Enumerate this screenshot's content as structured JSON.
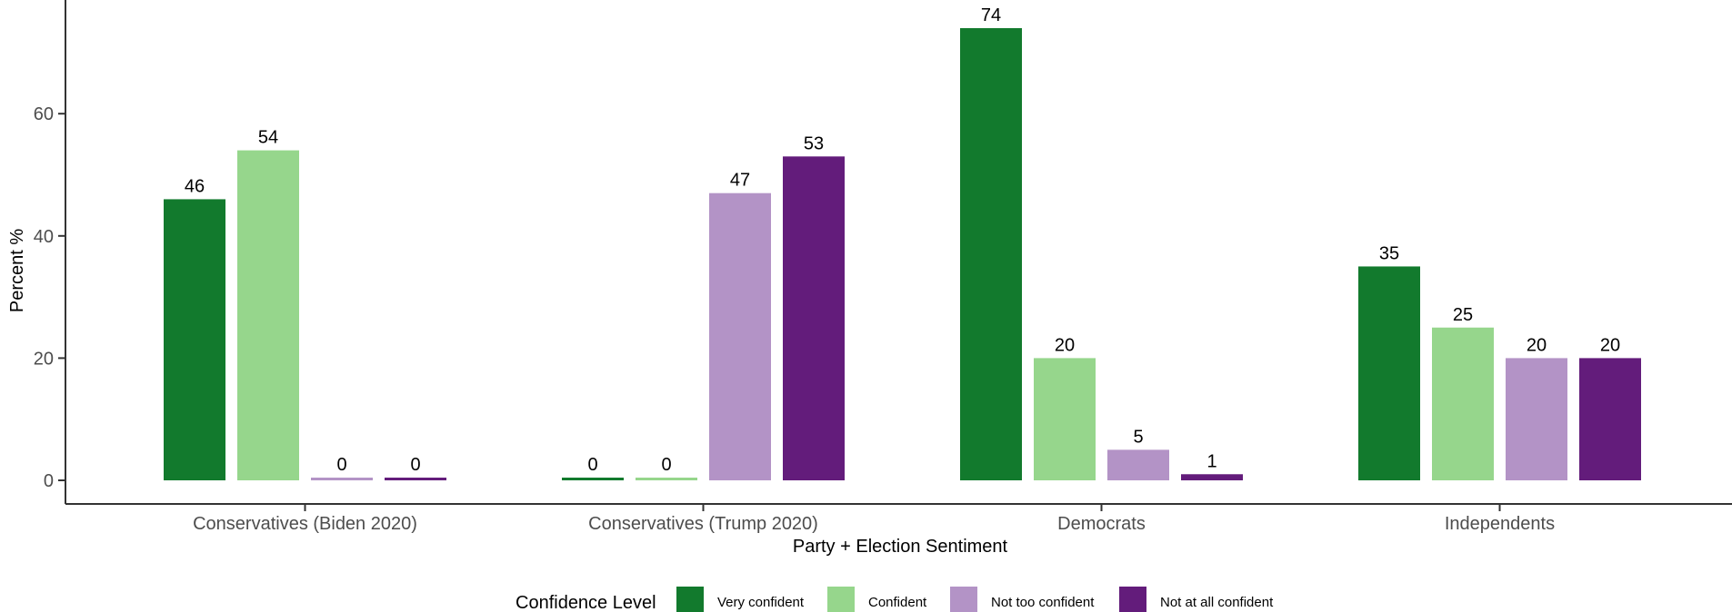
{
  "chart_data": {
    "type": "bar",
    "xlabel": "Party + Election Sentiment",
    "ylabel": "Percent %",
    "ylim": [
      0,
      77
    ],
    "yticks": [
      0,
      20,
      40,
      60
    ],
    "grid": false,
    "legend_position": "bottom",
    "legend_title": "Confidence Level",
    "categories": [
      "Conservatives (Biden 2020)",
      "Conservatives (Trump 2020)",
      "Democrats",
      "Independents"
    ],
    "series": [
      {
        "name": "Very confident",
        "color": "#127a2d",
        "values": [
          46,
          0,
          74,
          35
        ]
      },
      {
        "name": "Confident",
        "color": "#96d68c",
        "values": [
          54,
          0,
          20,
          25
        ]
      },
      {
        "name": "Not too confident",
        "color": "#b393c6",
        "values": [
          0,
          47,
          5,
          20
        ]
      },
      {
        "name": "Not at all confident",
        "color": "#631c7b",
        "values": [
          0,
          53,
          1,
          20
        ]
      }
    ]
  }
}
